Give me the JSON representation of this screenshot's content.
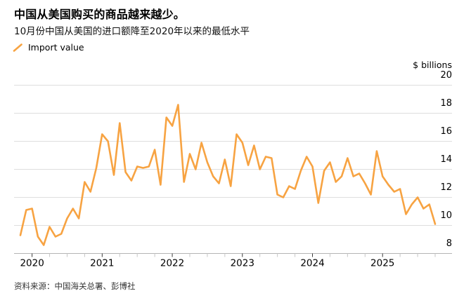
{
  "header": {
    "title": "中国从美国购买的商品越来越少。",
    "subtitle": "10月份中国从美国的进口额降至2020年以来的最低水平"
  },
  "legend": {
    "series_label": "Import value"
  },
  "source_text": "资料来源：中国海关总署、彭博社",
  "colors": {
    "line": "#F7A342",
    "gridline": "#dedede",
    "axis_line": "#b5b5b5",
    "year_tick": "#3a3a3a",
    "minor_tick": "#c6c6c6",
    "text": "#000000",
    "source_text": "#333333"
  },
  "chart_data": {
    "type": "line",
    "title": "中国从美国购买的商品越来越少。",
    "subtitle": "10月份中国从美国的进口额降至2020年以来的最低水平",
    "series_name": "Import value",
    "unit_label": "$ billions",
    "frequency": "monthly",
    "grid": "horizontal",
    "legend_position": "top-left",
    "ylim": [
      8,
      20
    ],
    "y_ticks": [
      20,
      18,
      16,
      14,
      12,
      10,
      8
    ],
    "x_year_labels": [
      "2020",
      "2021",
      "2022",
      "2023",
      "2024",
      "2025"
    ],
    "months": [
      "2019-11",
      "2019-12",
      "2020-01",
      "2020-02",
      "2020-03",
      "2020-04",
      "2020-05",
      "2020-06",
      "2020-07",
      "2020-08",
      "2020-09",
      "2020-10",
      "2020-11",
      "2020-12",
      "2021-01",
      "2021-02",
      "2021-03",
      "2021-04",
      "2021-05",
      "2021-06",
      "2021-07",
      "2021-08",
      "2021-09",
      "2021-10",
      "2021-11",
      "2021-12",
      "2022-01",
      "2022-02",
      "2022-03",
      "2022-04",
      "2022-05",
      "2022-06",
      "2022-07",
      "2022-08",
      "2022-09",
      "2022-10",
      "2022-11",
      "2022-12",
      "2023-01",
      "2023-02",
      "2023-03",
      "2023-04",
      "2023-05",
      "2023-06",
      "2023-07",
      "2023-08",
      "2023-09",
      "2023-10",
      "2023-11",
      "2023-12",
      "2024-01",
      "2024-02",
      "2024-03",
      "2024-04",
      "2024-05",
      "2024-06",
      "2024-07",
      "2024-08",
      "2024-09",
      "2024-10",
      "2024-11",
      "2024-12",
      "2025-01",
      "2025-02",
      "2025-03",
      "2025-04",
      "2025-05",
      "2025-06",
      "2025-07",
      "2025-08",
      "2025-09",
      "2025-10"
    ],
    "values": [
      9.3,
      11.1,
      11.2,
      9.2,
      8.6,
      9.9,
      9.2,
      9.4,
      10.5,
      11.2,
      10.5,
      13.1,
      12.4,
      14.1,
      16.5,
      16.0,
      13.6,
      17.3,
      13.8,
      13.2,
      14.2,
      14.1,
      14.2,
      15.4,
      12.9,
      17.7,
      17.1,
      18.6,
      13.1,
      15.1,
      14.0,
      15.9,
      14.5,
      13.5,
      13.0,
      14.7,
      12.8,
      16.5,
      15.9,
      14.3,
      15.7,
      14.0,
      14.9,
      14.8,
      12.2,
      12.0,
      12.8,
      12.6,
      13.9,
      14.9,
      14.2,
      11.6,
      13.9,
      14.5,
      13.1,
      13.5,
      14.8,
      13.5,
      13.7,
      13.0,
      12.2,
      15.3,
      13.5,
      12.9,
      12.4,
      12.6,
      10.8,
      11.5,
      12.0,
      11.2,
      11.5,
      10.1
    ]
  }
}
